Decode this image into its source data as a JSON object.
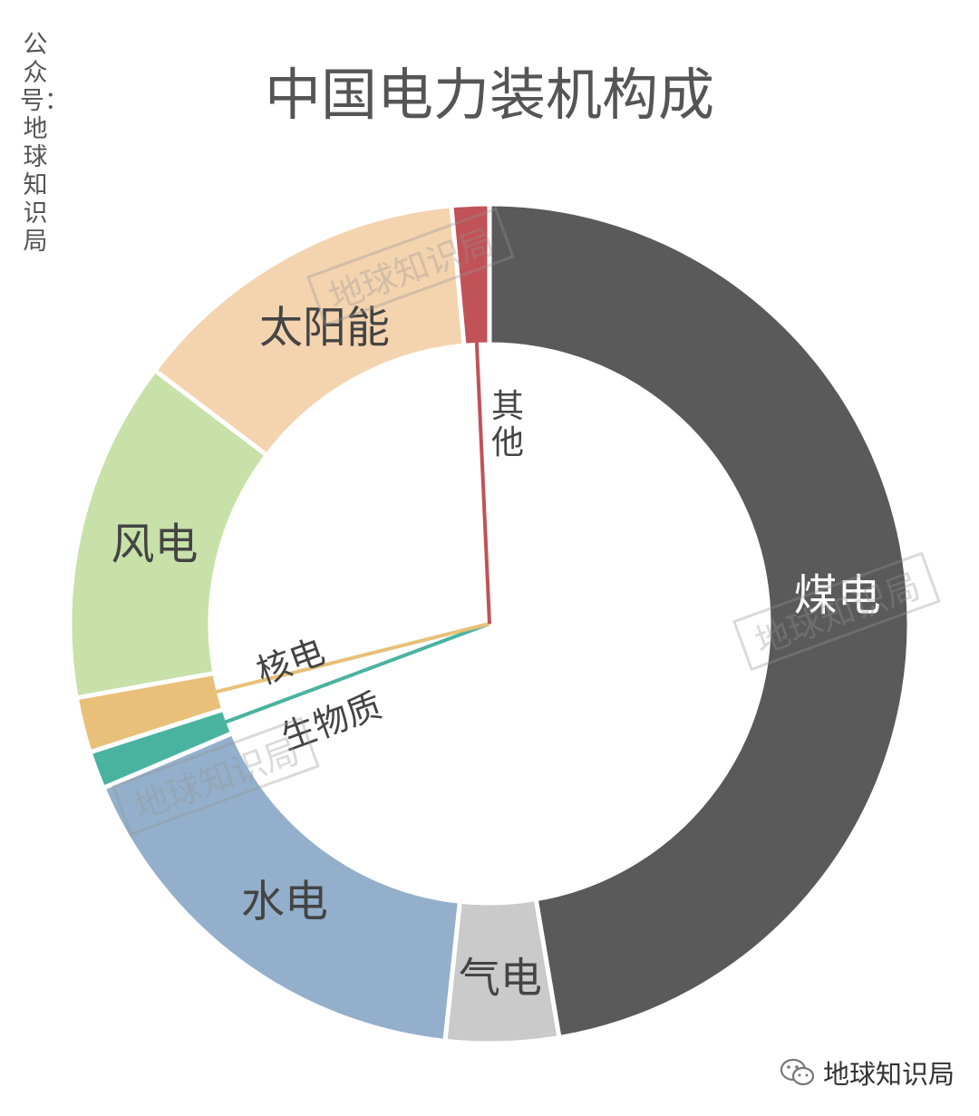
{
  "credit_vertical": "公众号：地球知识局",
  "watermark": "地球知识局",
  "footer_brand": "地球知识局",
  "footer_icon": "wechat-icon",
  "chart_data": {
    "type": "pie",
    "variant": "donut",
    "title": "中国电力装机构成",
    "series": [
      {
        "name": "煤电",
        "value": 49.0,
        "color": "#5a5a5a",
        "label_color": "#ffffff"
      },
      {
        "name": "气电",
        "value": 4.5,
        "color": "#cacaca",
        "label_color": "#444444"
      },
      {
        "name": "水电",
        "value": 17.5,
        "color": "#93afcb",
        "label_color": "#444444"
      },
      {
        "name": "生物质",
        "value": 1.5,
        "color": "#4ab39f",
        "label_color": "#444444"
      },
      {
        "name": "核电",
        "value": 2.2,
        "color": "#e8c07a",
        "label_color": "#444444"
      },
      {
        "name": "风电",
        "value": 13.6,
        "color": "#c7e1a9",
        "label_color": "#444444"
      },
      {
        "name": "太阳能",
        "value": 13.7,
        "color": "#f4d3af",
        "label_color": "#444444"
      },
      {
        "name": "其他",
        "value": 1.5,
        "color": "#c15257",
        "label_color": "#444444"
      }
    ],
    "start_angle_deg": 0,
    "direction": "clockwise",
    "legend": "none"
  }
}
